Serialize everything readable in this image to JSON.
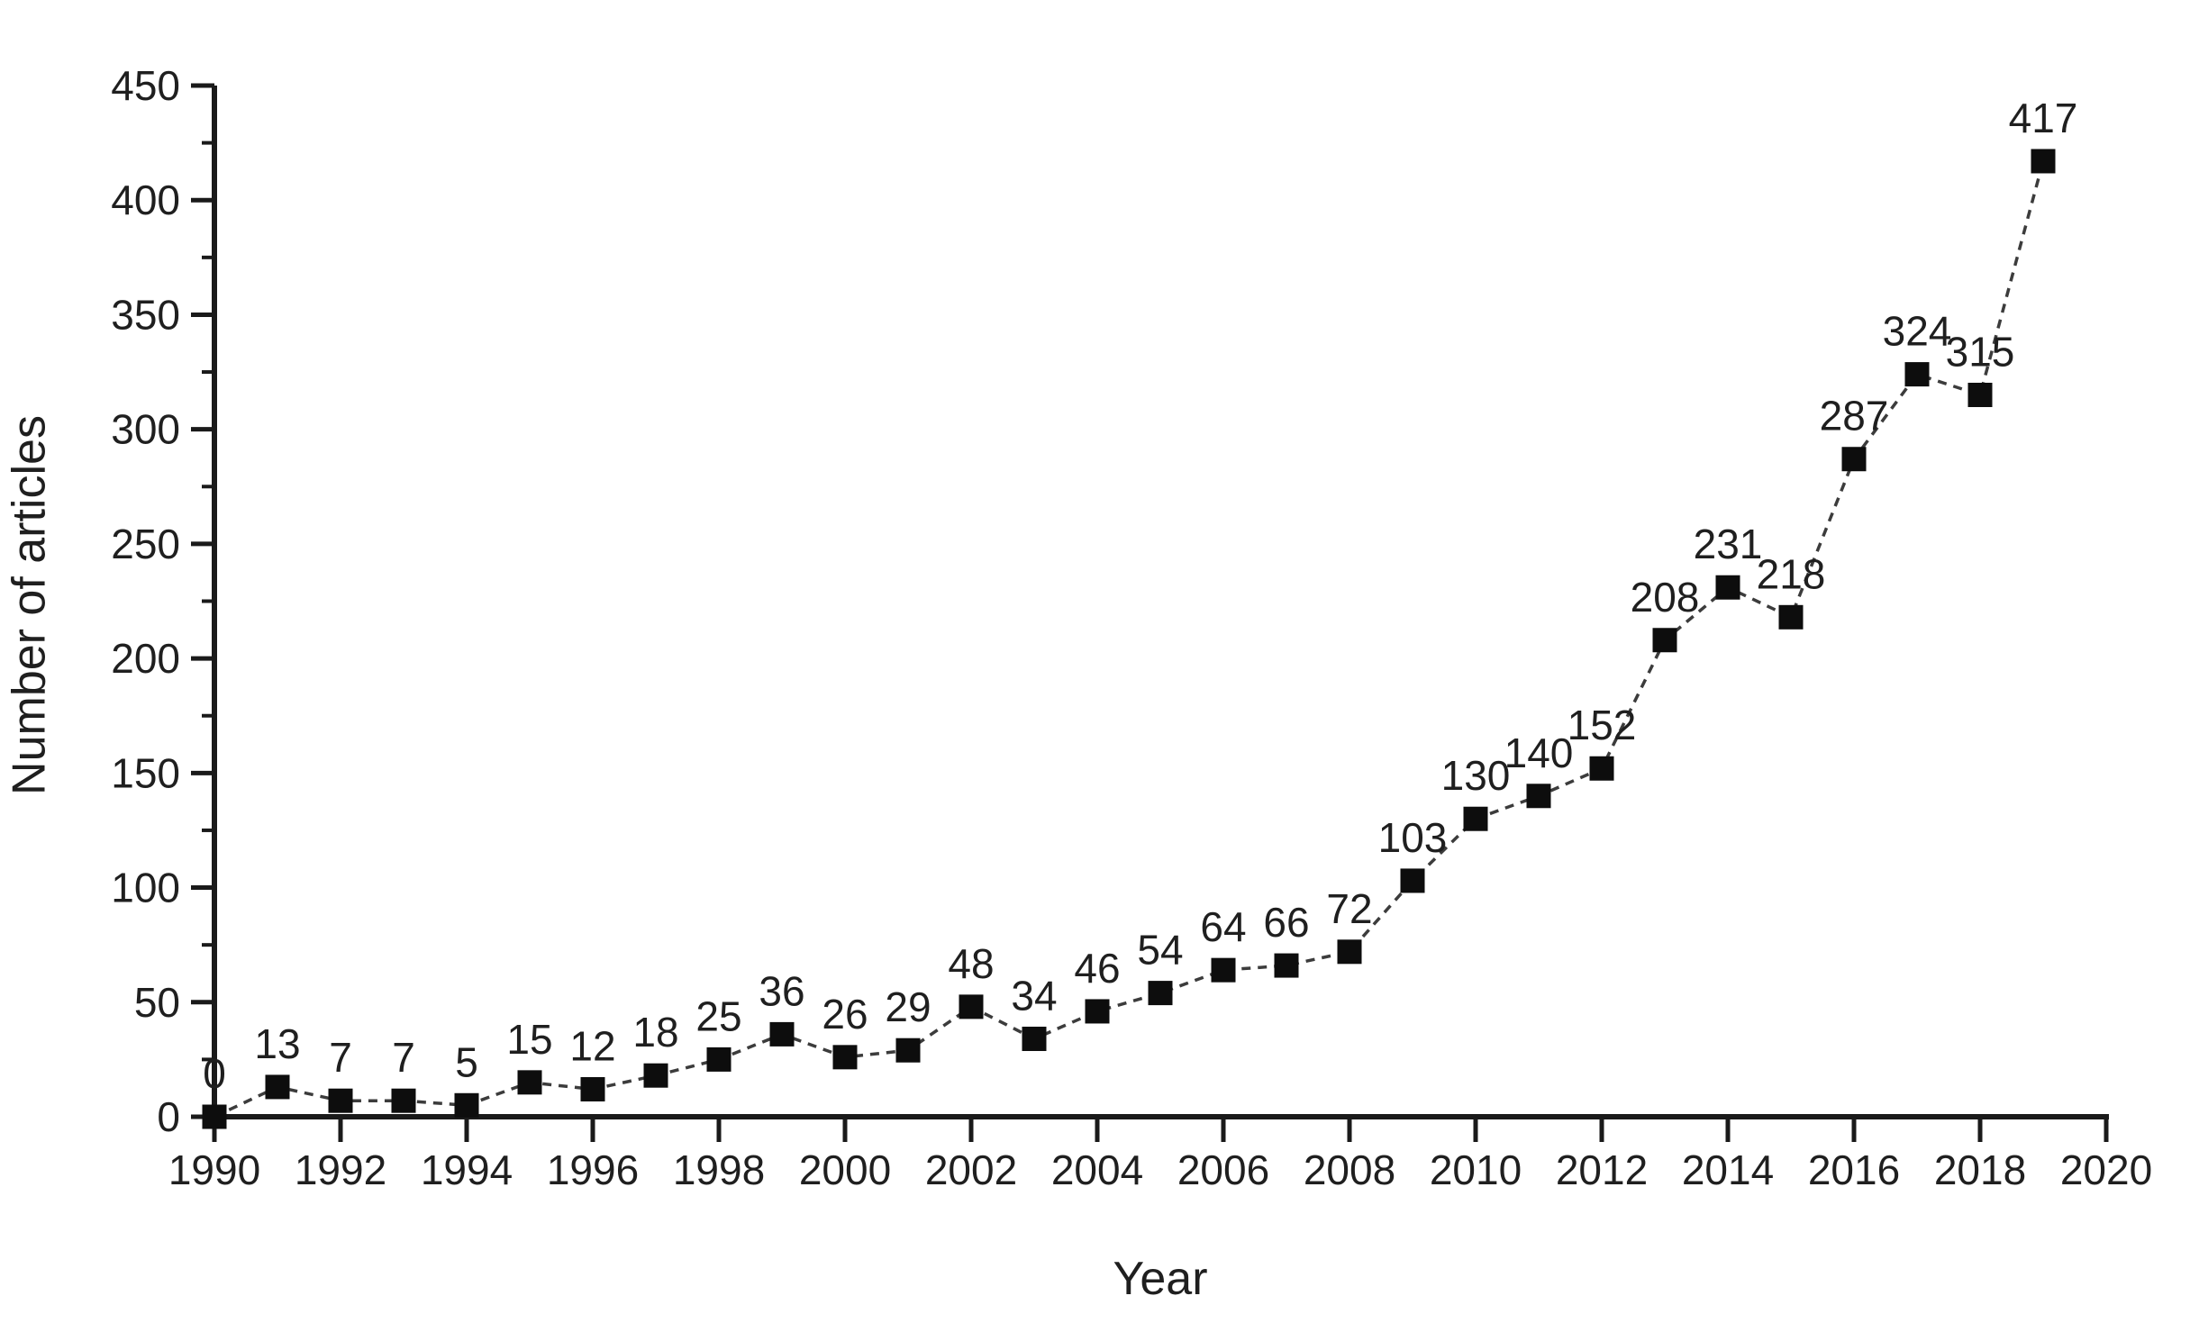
{
  "figure": {
    "xlabel": "Year",
    "ylabel": "Number of articles"
  },
  "chart_data": {
    "type": "line",
    "title": "",
    "xlabel": "Year",
    "ylabel": "Number of articles",
    "x": [
      1990,
      1991,
      1992,
      1993,
      1994,
      1995,
      1996,
      1997,
      1998,
      1999,
      2000,
      2001,
      2002,
      2003,
      2004,
      2005,
      2006,
      2007,
      2008,
      2009,
      2010,
      2011,
      2012,
      2013,
      2014,
      2015,
      2016,
      2017,
      2018,
      2019
    ],
    "series": [
      {
        "name": "Number of articles",
        "values": [
          0,
          13,
          7,
          7,
          5,
          15,
          12,
          18,
          25,
          36,
          26,
          29,
          48,
          34,
          46,
          54,
          64,
          66,
          72,
          103,
          130,
          140,
          152,
          208,
          231,
          218,
          287,
          324,
          315,
          417
        ]
      }
    ],
    "point_labels": [
      "0",
      "13",
      "7",
      "7",
      "5",
      "15",
      "12",
      "18",
      "25",
      "36",
      "26",
      "29",
      "48",
      "34",
      "46",
      "54",
      "64",
      "66",
      "72",
      "103",
      "130",
      "140",
      "152",
      "208",
      "231",
      "218",
      "287",
      "324",
      "315",
      "417"
    ],
    "xlim": [
      1990,
      2020
    ],
    "ylim": [
      0,
      450
    ],
    "x_ticks": [
      1990,
      1992,
      1994,
      1996,
      1998,
      2000,
      2002,
      2004,
      2006,
      2008,
      2010,
      2012,
      2014,
      2016,
      2018,
      2020
    ],
    "y_ticks": [
      0,
      50,
      100,
      150,
      200,
      250,
      300,
      350,
      400,
      450
    ],
    "y_minor_ticks": [
      25,
      75,
      125,
      175,
      225,
      275,
      325,
      375,
      425
    ],
    "grid": false,
    "legend": false,
    "marker": "filled-square",
    "line_style": "dashed",
    "colors": {
      "background": "#ffffff",
      "axis": "#1a1a1a",
      "text": "#1f1f1f",
      "marker": "#0d0d0d",
      "line": "#3c3c3c"
    }
  }
}
